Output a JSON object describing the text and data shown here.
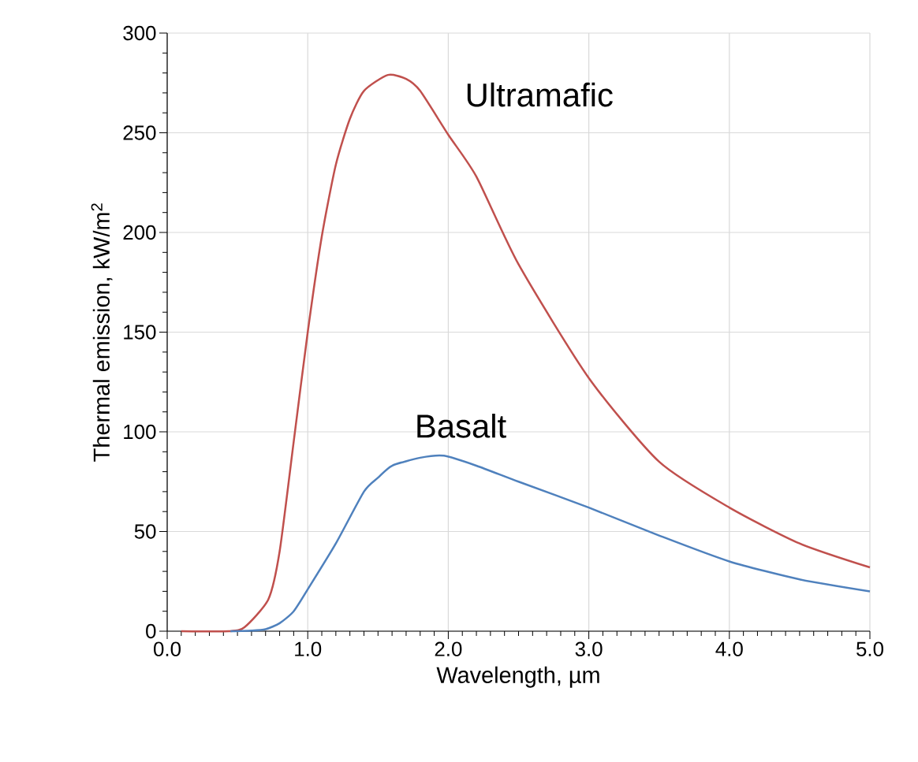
{
  "chart_data": {
    "type": "line",
    "xlabel": "Wavelength, µm",
    "ylabel": "Thermal emission, kW/m$^{2}$",
    "xlim": [
      0,
      5
    ],
    "ylim": [
      0,
      300
    ],
    "xticks": [
      {
        "value": 0,
        "label": "0.0"
      },
      {
        "value": 1,
        "label": "1.0"
      },
      {
        "value": 2,
        "label": "2.0"
      },
      {
        "value": 3,
        "label": "3.0"
      },
      {
        "value": 4,
        "label": "4.0"
      },
      {
        "value": 5,
        "label": "5.0"
      }
    ],
    "yticks": [
      0,
      50,
      100,
      150,
      200,
      250,
      300
    ],
    "grid": true,
    "marker": "none",
    "line_style": "solid",
    "series": [
      {
        "name": "Ultramafic",
        "color": "#c0504d",
        "x": [
          0.1,
          0.44,
          0.55,
          0.72,
          0.8,
          0.9,
          1.0,
          1.1,
          1.2,
          1.3,
          1.4,
          1.57,
          1.7,
          1.8,
          2.0,
          2.2,
          2.5,
          3.0,
          3.5,
          4.0,
          4.5,
          5.0
        ],
        "values": [
          0,
          0,
          2,
          16,
          40,
          95,
          150,
          198,
          234,
          257,
          271,
          279,
          277,
          271,
          249,
          228,
          184,
          127,
          85,
          62,
          44,
          32
        ]
      },
      {
        "name": "Basalt",
        "color": "#4f81bd",
        "x": [
          0.45,
          0.6,
          0.7,
          0.8,
          0.9,
          1.0,
          1.2,
          1.4,
          1.5,
          1.6,
          1.8,
          1.97,
          2.2,
          2.5,
          3.0,
          3.5,
          4.0,
          4.5,
          5.0
        ],
        "values": [
          0,
          0.3,
          1,
          4,
          10,
          21,
          44,
          70,
          77,
          83,
          87,
          88,
          83,
          75,
          62,
          48,
          35,
          26,
          20
        ]
      }
    ]
  }
}
